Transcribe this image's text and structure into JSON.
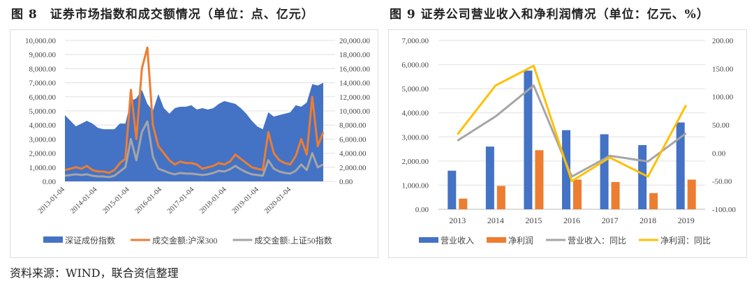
{
  "figure8": {
    "title": "图 8　证券市场指数和成交额情况（单位：点、亿元）"
  },
  "figure9": {
    "title": "图 9  证券公司营业收入和净利润情况（单位：亿元、%）"
  },
  "source": "资料来源：WIND，联合资信整理",
  "chart_data": [
    {
      "type": "area",
      "title": "",
      "x_ticks": [
        "2013-01-04",
        "2014-01-04",
        "2015-01-04",
        "2016-01-04",
        "2017-01-04",
        "2018-01-04",
        "2019-01-04",
        "2020-01-04"
      ],
      "y_left_ticks": [
        "0.00",
        "1,000.00",
        "2,000.00",
        "3,000.00",
        "4,000.00",
        "5,000.00",
        "6,000.00",
        "7,000.00",
        "8,000.00",
        "9,000.00",
        "10,000.00"
      ],
      "y_right_ticks": [
        "0.00",
        "2,000.00",
        "4,000.00",
        "6,000.00",
        "8,000.00",
        "10,000.00",
        "12,000.00",
        "14,000.00",
        "16,000.00",
        "18,000.00",
        "20,000.00"
      ],
      "ylim_left": [
        0,
        10000
      ],
      "ylim_right": [
        0,
        20000
      ],
      "grid": true,
      "legend_position": "bottom",
      "x": [
        "2013-01",
        "2013-03",
        "2013-05",
        "2013-07",
        "2013-09",
        "2013-11",
        "2014-01",
        "2014-03",
        "2014-05",
        "2014-07",
        "2014-09",
        "2014-11",
        "2015-01",
        "2015-03",
        "2015-05",
        "2015-07",
        "2015-09",
        "2015-11",
        "2016-01",
        "2016-03",
        "2016-05",
        "2016-07",
        "2016-09",
        "2016-11",
        "2017-01",
        "2017-03",
        "2017-05",
        "2017-07",
        "2017-09",
        "2017-11",
        "2018-01",
        "2018-03",
        "2018-05",
        "2018-07",
        "2018-09",
        "2018-11",
        "2019-01",
        "2019-03",
        "2019-05",
        "2019-07",
        "2019-09",
        "2019-11",
        "2020-01",
        "2020-03",
        "2020-05",
        "2020-07",
        "2020-09",
        "2020-11"
      ],
      "series": [
        {
          "name": "深证成份指数",
          "axis": "left",
          "kind": "area",
          "color": "#4472c4",
          "values": [
            4700,
            4300,
            3900,
            4100,
            4300,
            4100,
            3800,
            3700,
            3700,
            3700,
            4100,
            4100,
            5700,
            5900,
            6500,
            5500,
            5000,
            6200,
            5200,
            4800,
            5200,
            5300,
            5300,
            5400,
            5100,
            5200,
            5100,
            5200,
            5500,
            5700,
            5600,
            5500,
            5200,
            4800,
            4300,
            3900,
            3700,
            4900,
            4600,
            4700,
            4800,
            4900,
            5400,
            5300,
            5600,
            6900,
            6800,
            7000
          ]
        },
        {
          "name": "成交金额:沪深300",
          "axis": "right",
          "kind": "line",
          "color": "#ed7d31",
          "values": [
            1600,
            1800,
            2000,
            1800,
            2200,
            1600,
            1400,
            1400,
            1200,
            1600,
            2600,
            3200,
            13000,
            6000,
            16000,
            19000,
            8000,
            5000,
            4000,
            3000,
            2400,
            2800,
            2600,
            2600,
            2400,
            1800,
            2000,
            2200,
            2600,
            2400,
            2800,
            3800,
            3200,
            2600,
            2000,
            1800,
            1600,
            7000,
            4000,
            3000,
            2600,
            2400,
            3600,
            6000,
            3800,
            12000,
            5000,
            7000
          ]
        },
        {
          "name": "成交金额:上证50指数",
          "axis": "right",
          "kind": "line",
          "color": "#a5a5a5",
          "values": [
            800,
            900,
            1000,
            900,
            1000,
            800,
            700,
            700,
            600,
            800,
            1400,
            2000,
            6000,
            3000,
            7000,
            8500,
            3500,
            1800,
            1500,
            1200,
            1000,
            1200,
            1100,
            1100,
            1000,
            900,
            1000,
            1200,
            1500,
            1400,
            1700,
            2200,
            1700,
            1300,
            1000,
            900,
            800,
            3000,
            1800,
            1400,
            1200,
            1100,
            1500,
            2400,
            1600,
            4000,
            2000,
            2400
          ]
        }
      ]
    },
    {
      "type": "bar",
      "title": "",
      "categories": [
        "2013",
        "2014",
        "2015",
        "2016",
        "2017",
        "2018",
        "2019"
      ],
      "y_left_ticks": [
        "0.00",
        "1,000.00",
        "2,000.00",
        "3,000.00",
        "4,000.00",
        "5,000.00",
        "6,000.00",
        "7,000.00"
      ],
      "y_right_ticks": [
        "-100.00",
        "-50.00",
        "0.00",
        "50.00",
        "100.00",
        "150.00",
        "200.00"
      ],
      "ylim_left": [
        0,
        7000
      ],
      "ylim_right": [
        -100,
        200
      ],
      "grid": true,
      "legend_position": "bottom",
      "series": [
        {
          "name": "营业收入",
          "axis": "left",
          "kind": "bar",
          "color": "#4472c4",
          "values": [
            1600,
            2600,
            5750,
            3280,
            3110,
            2660,
            3600
          ]
        },
        {
          "name": "净利润",
          "axis": "left",
          "kind": "bar",
          "color": "#ed7d31",
          "values": [
            440,
            970,
            2450,
            1230,
            1130,
            670,
            1230
          ]
        },
        {
          "name": "营业收入：同比",
          "axis": "right",
          "kind": "line",
          "color": "#a5a5a5",
          "values": [
            22,
            65,
            120,
            -42,
            -5,
            -15,
            35
          ]
        },
        {
          "name": "净利润：同比",
          "axis": "right",
          "kind": "line",
          "color": "#ffc000",
          "values": [
            33,
            120,
            155,
            -50,
            -8,
            -42,
            85
          ]
        }
      ]
    }
  ]
}
